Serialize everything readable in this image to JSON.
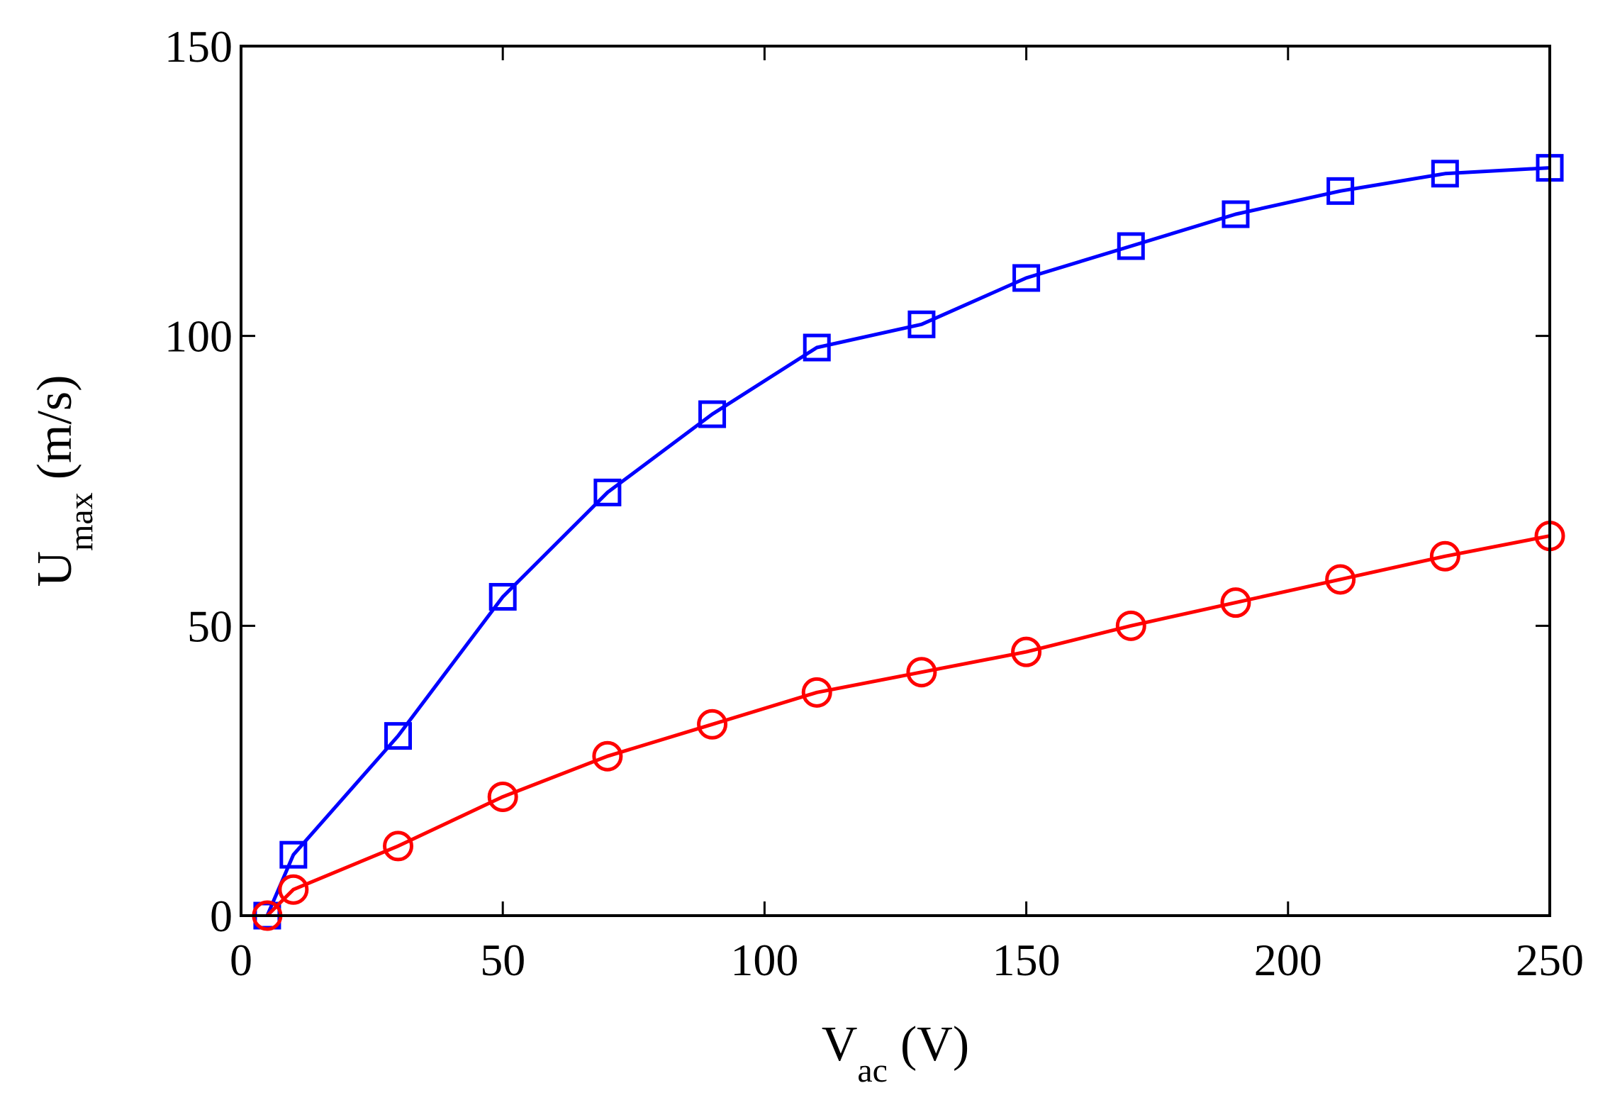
{
  "chart_data": {
    "type": "line",
    "title": "",
    "xlabel": {
      "main": "V",
      "subscript": "ac",
      "unit": "(V)"
    },
    "ylabel": {
      "main": "U",
      "subscript": "max",
      "unit": "(m/s)"
    },
    "xlim": [
      0,
      250
    ],
    "ylim": [
      0,
      150
    ],
    "xticks": [
      0,
      50,
      100,
      150,
      200,
      250
    ],
    "yticks": [
      0,
      50,
      100,
      150
    ],
    "xtick_labels": [
      "0",
      "50",
      "100",
      "150",
      "200",
      "250"
    ],
    "ytick_labels": [
      "0",
      "50",
      "100",
      "150"
    ],
    "grid": false,
    "series": [
      {
        "name": "squares",
        "color": "#0000ff",
        "marker": "square",
        "x": [
          5,
          10,
          30,
          50,
          70,
          90,
          110,
          130,
          150,
          170,
          190,
          210,
          230,
          250
        ],
        "y": [
          0,
          10.5,
          31,
          55,
          73,
          86.5,
          98,
          102,
          110,
          115.5,
          121,
          125,
          128,
          129
        ]
      },
      {
        "name": "circles",
        "color": "#ff0000",
        "marker": "circle",
        "x": [
          5,
          10,
          30,
          50,
          70,
          90,
          110,
          130,
          150,
          170,
          190,
          210,
          230,
          250
        ],
        "y": [
          0,
          4.5,
          12,
          20.5,
          27.5,
          33,
          38.5,
          42,
          45.5,
          50,
          54,
          58,
          62,
          65.5
        ]
      }
    ]
  }
}
